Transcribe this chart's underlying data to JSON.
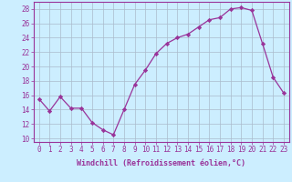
{
  "x": [
    0,
    1,
    2,
    3,
    4,
    5,
    6,
    7,
    8,
    9,
    10,
    11,
    12,
    13,
    14,
    15,
    16,
    17,
    18,
    19,
    20,
    21,
    22,
    23
  ],
  "y": [
    15.5,
    13.8,
    15.8,
    14.2,
    14.2,
    12.2,
    11.2,
    10.5,
    14.0,
    17.5,
    19.5,
    21.8,
    23.2,
    24.0,
    24.5,
    25.5,
    26.5,
    26.8,
    28.0,
    28.2,
    27.8,
    23.2,
    18.5,
    16.3
  ],
  "line_color": "#993399",
  "marker": "D",
  "marker_size": 2.2,
  "bg_color": "#cceeff",
  "grid_color": "#aabbcc",
  "xlabel": "Windchill (Refroidissement éolien,°C)",
  "xlim": [
    -0.5,
    23.5
  ],
  "ylim": [
    9.5,
    29.0
  ],
  "yticks": [
    10,
    12,
    14,
    16,
    18,
    20,
    22,
    24,
    26,
    28
  ],
  "xticks": [
    0,
    1,
    2,
    3,
    4,
    5,
    6,
    7,
    8,
    9,
    10,
    11,
    12,
    13,
    14,
    15,
    16,
    17,
    18,
    19,
    20,
    21,
    22,
    23
  ],
  "label_color": "#993399",
  "spine_color": "#993399",
  "tick_fontsize": 5.5,
  "xlabel_fontsize": 6.0
}
